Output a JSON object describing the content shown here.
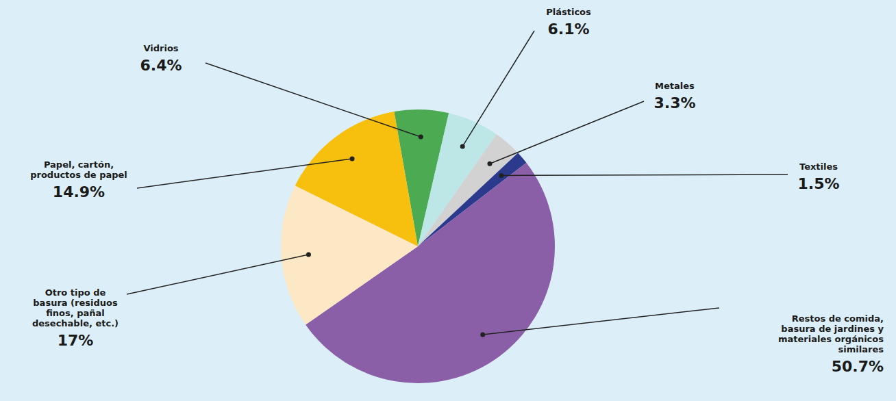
{
  "chart_data": {
    "type": "pie",
    "categories": [
      "Vidrios",
      "Plásticos",
      "Metales",
      "Textiles",
      "Restos de comida, basura de jardines y materiales orgánicos similares",
      "Otro tipo de basura (residuos finos, pañal desechable, etc.)",
      "Papel, cartón, productos de papel"
    ],
    "values": [
      6.4,
      6.1,
      3.3,
      1.5,
      50.7,
      17,
      14.9
    ],
    "value_labels": [
      "6.4%",
      "6.1%",
      "3.3%",
      "1.5%",
      "50.7%",
      "17%",
      "14.9%"
    ],
    "colors": [
      "#4caa52",
      "#bde6e6",
      "#d2d2d2",
      "#2b3a8c",
      "#8a5fa8",
      "#fde8c6",
      "#f8c00e"
    ],
    "data_labels": true
  }
}
